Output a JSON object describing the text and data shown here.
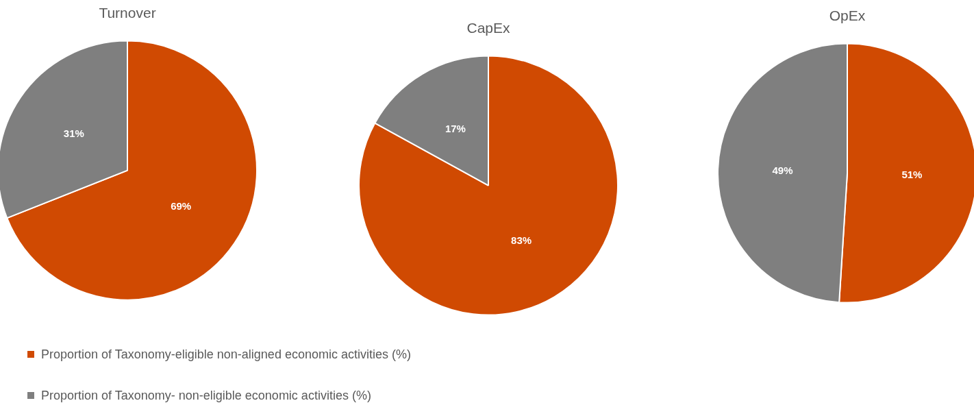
{
  "chart_data": [
    {
      "type": "pie",
      "title": "Turnover",
      "categories": [
        "Proportion of Taxonomy-eligible non-aligned economic activities (%)",
        "Proportion of Taxonomy- non-eligible economic activities (%)"
      ],
      "values": [
        69,
        31
      ],
      "value_labels": [
        "69%",
        "31%"
      ],
      "colors": [
        "#d04a02",
        "#7f7f7f"
      ],
      "legend": "bottom"
    },
    {
      "type": "pie",
      "title": "CapEx",
      "categories": [
        null,
        null
      ],
      "values": [
        83,
        17
      ],
      "value_labels": [
        "83%",
        "17%"
      ],
      "colors": [
        "#d04a02",
        "#7f7f7f"
      ]
    },
    {
      "type": "pie",
      "title": "OpEx",
      "categories": [
        null,
        null
      ],
      "values": [
        51,
        49
      ],
      "value_labels": [
        "51%",
        "49%"
      ],
      "colors": [
        "#d04a02",
        "#7f7f7f"
      ]
    }
  ]
}
